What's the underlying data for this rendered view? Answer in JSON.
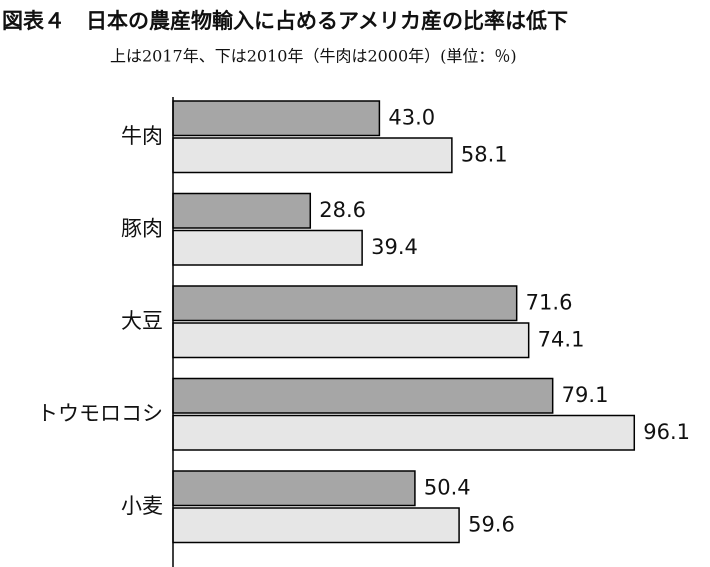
{
  "chart_data": {
    "type": "hbar",
    "title": "図表４　日本の農産物輸入に占めるアメリカ産の比率は低下",
    "subtitle": "上は2017年、下は2010年（牛肉は2000年）(単位：％)",
    "categories": [
      "牛肉",
      "豚肉",
      "大豆",
      "トウモロコシ",
      "小麦"
    ],
    "series": [
      {
        "color": "#a6a6a6",
        "values": [
          43.0,
          28.6,
          71.6,
          79.1,
          50.4
        ],
        "value_labels": [
          "43.0",
          "28.6",
          "71.6",
          "79.1",
          "50.4"
        ]
      },
      {
        "color": "#e6e6e6",
        "values": [
          58.1,
          39.4,
          74.1,
          96.1,
          59.6
        ],
        "value_labels": [
          "58.1",
          "39.4",
          "74.1",
          "96.1",
          "59.6"
        ]
      }
    ],
    "xlim": [
      0,
      100
    ]
  }
}
